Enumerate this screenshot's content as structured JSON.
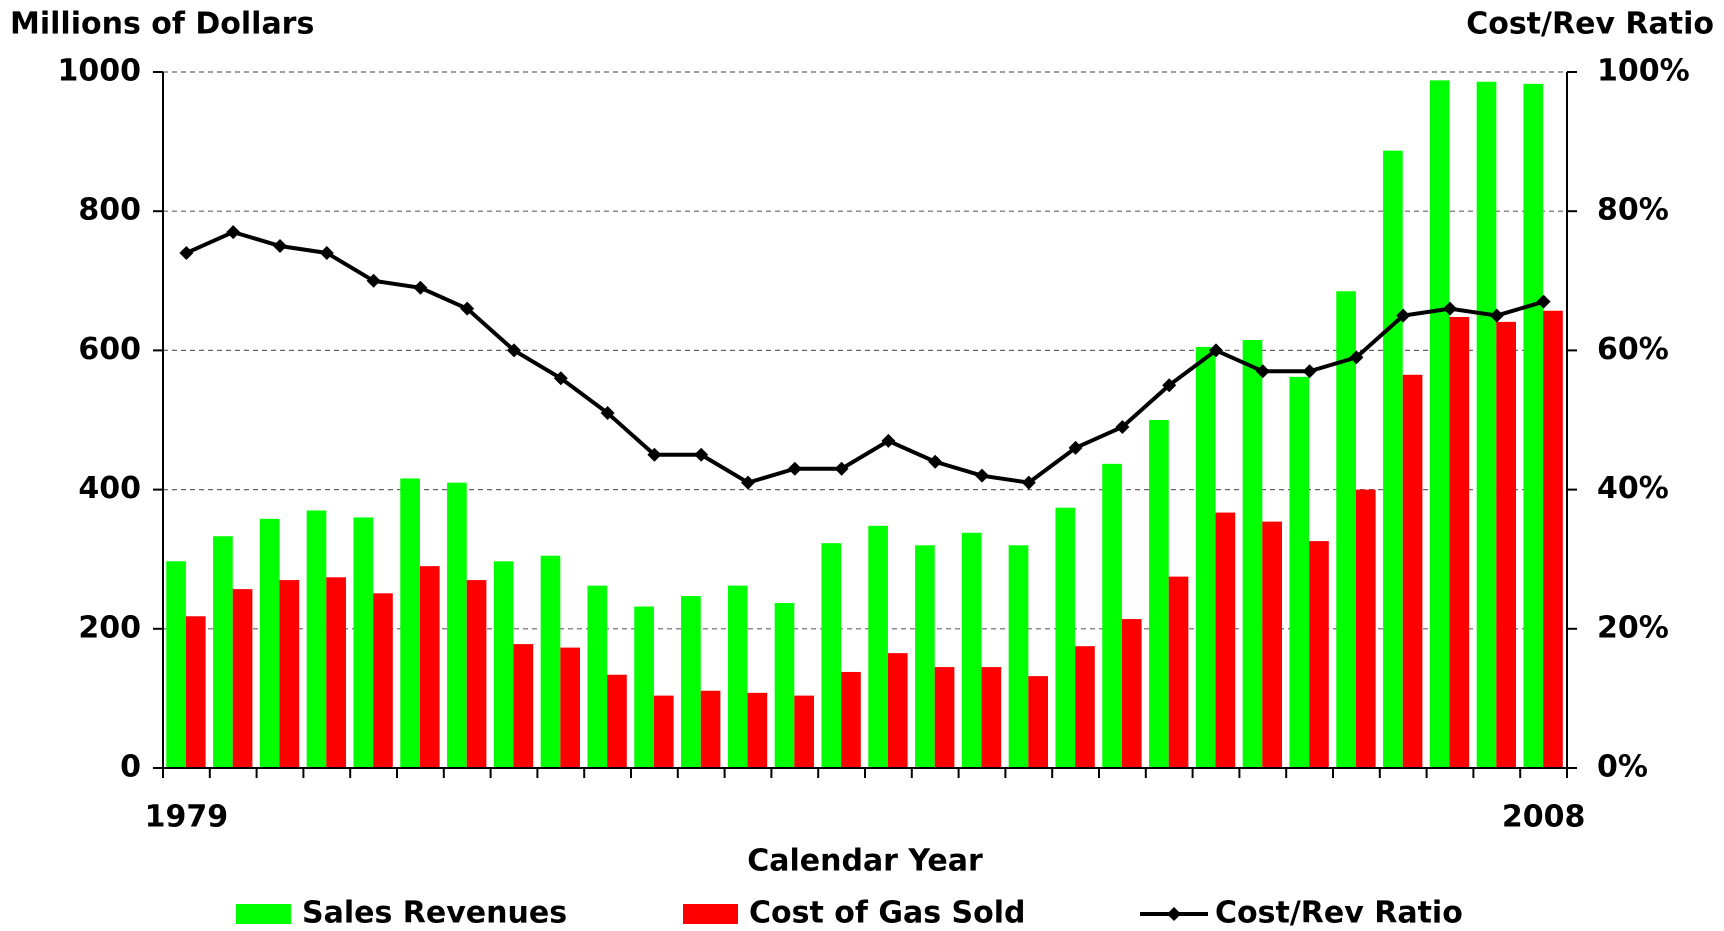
{
  "chart_data": {
    "type": "bar",
    "y_label": "Millions of Dollars",
    "y2_label": "Cost/Rev Ratio",
    "x_label": "Calendar Year",
    "categories": [
      "1979",
      null,
      null,
      null,
      null,
      null,
      null,
      null,
      null,
      null,
      null,
      null,
      null,
      null,
      null,
      null,
      null,
      null,
      null,
      null,
      null,
      null,
      null,
      null,
      null,
      null,
      null,
      null,
      null,
      "2008"
    ],
    "series": [
      {
        "name": "Sales Revenues",
        "color": "#00ff00",
        "type": "bar",
        "values": [
          297,
          333,
          358,
          370,
          360,
          416,
          410,
          297,
          305,
          262,
          232,
          247,
          262,
          237,
          323,
          348,
          320,
          338,
          320,
          374,
          437,
          500,
          605,
          615,
          562,
          685,
          887,
          988,
          986,
          983
        ]
      },
      {
        "name": "Cost of Gas Sold",
        "color": "#ff0000",
        "type": "bar",
        "values": [
          218,
          257,
          270,
          274,
          251,
          290,
          270,
          178,
          173,
          134,
          104,
          111,
          108,
          104,
          138,
          165,
          145,
          145,
          132,
          175,
          214,
          275,
          367,
          354,
          326,
          400,
          565,
          648,
          641,
          657
        ]
      },
      {
        "name": "Cost/Rev Ratio",
        "color": "#000000",
        "type": "line",
        "axis": "y2",
        "values": [
          74,
          77,
          75,
          74,
          70,
          69,
          66,
          60,
          56,
          51,
          45,
          45,
          41,
          43,
          43,
          47,
          44,
          42,
          41,
          46,
          49,
          55,
          60,
          57,
          57,
          59,
          65,
          66,
          65,
          67
        ]
      }
    ],
    "ylim": [
      0,
      1000
    ],
    "yticks": [
      0,
      200,
      400,
      600,
      800,
      1000
    ],
    "y2lim": [
      0,
      100
    ],
    "y2ticks": [
      {
        "value": 0,
        "label": "0%"
      },
      {
        "value": 20,
        "label": "20%"
      },
      {
        "value": 40,
        "label": "40%"
      },
      {
        "value": 60,
        "label": "60%"
      },
      {
        "value": 80,
        "label": "80%"
      },
      {
        "value": 100,
        "label": "100%"
      }
    ],
    "grid": true,
    "legend": "bottom"
  }
}
